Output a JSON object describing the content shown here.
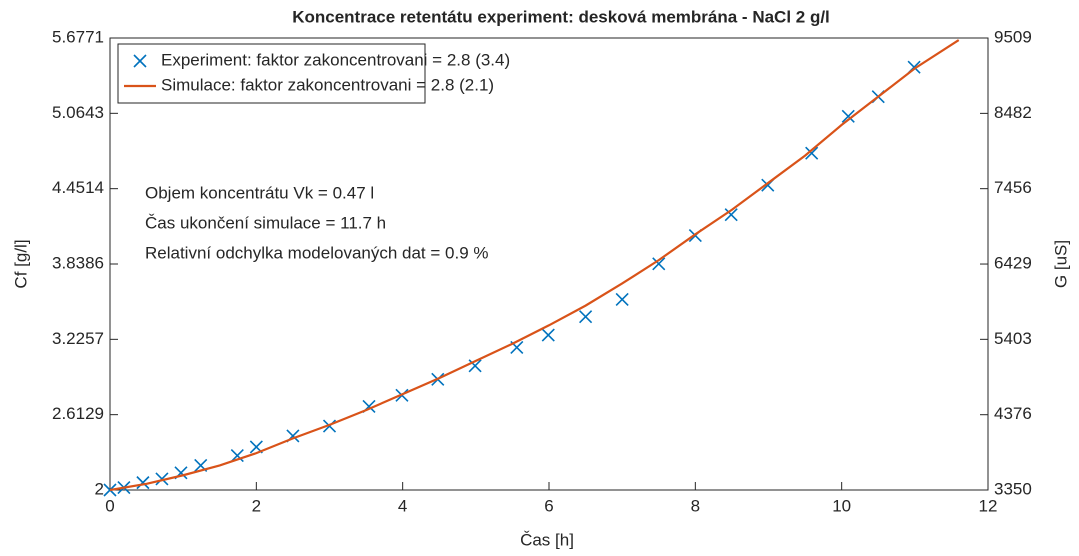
{
  "chart_data": {
    "type": "line",
    "title": "Koncentrace retentátu experiment: desková membrána - NaCl 2 g/l",
    "xlabel": "Čas [h]",
    "ylabel": "Cf [g/l]",
    "y2label": "G [uS]",
    "xlim": [
      0,
      12
    ],
    "xticks": [
      0,
      2,
      4,
      6,
      8,
      10,
      12
    ],
    "ylim": [
      2,
      5.6771
    ],
    "yticks": [
      2,
      2.6129,
      3.2257,
      3.8386,
      4.4514,
      5.0643,
      5.6771
    ],
    "y2lim": [
      3350,
      9509
    ],
    "y2ticks": [
      3350,
      4376,
      5403,
      6429,
      7456,
      8482,
      9509
    ],
    "legend": "upper left",
    "annotations": [
      "Objem koncentrátu Vk = 0.47 l",
      "Čas ukončení simulace = 11.7 h",
      "Relativní odchylka modelovaných dat = 0.9 %"
    ],
    "series": [
      {
        "name": "Experiment: faktor zakoncentrovani = 2.8 (3.4)",
        "color": "#0072bd",
        "marker": "x",
        "x": [
          0,
          0.19,
          0.45,
          0.71,
          0.97,
          1.24,
          1.74,
          2.0,
          2.5,
          3.0,
          3.54,
          3.99,
          4.48,
          4.99,
          5.56,
          5.99,
          6.5,
          7.0,
          7.5,
          8.0,
          8.49,
          8.99,
          9.59,
          10.09,
          10.5,
          10.99
        ],
        "values": [
          2.0,
          2.02,
          2.06,
          2.09,
          2.14,
          2.2,
          2.28,
          2.35,
          2.44,
          2.52,
          2.68,
          2.77,
          2.9,
          3.01,
          3.16,
          3.26,
          3.41,
          3.55,
          3.84,
          4.07,
          4.24,
          4.48,
          4.74,
          5.04,
          5.2,
          5.44
        ]
      },
      {
        "name": "Simulace: faktor zakoncentrovani = 2.8 (2.1)",
        "color": "#d95319",
        "marker": "none",
        "x": [
          0,
          0.5,
          1,
          1.5,
          2,
          2.5,
          3,
          3.5,
          4,
          4.5,
          5,
          5.5,
          6,
          6.5,
          7,
          7.5,
          8,
          8.5,
          9,
          9.5,
          10,
          10.5,
          11,
          11.6
        ],
        "values": [
          2.0,
          2.05,
          2.12,
          2.2,
          2.3,
          2.42,
          2.53,
          2.65,
          2.78,
          2.91,
          3.05,
          3.19,
          3.34,
          3.5,
          3.68,
          3.87,
          4.08,
          4.28,
          4.5,
          4.72,
          4.97,
          5.2,
          5.43,
          5.66
        ]
      }
    ]
  }
}
